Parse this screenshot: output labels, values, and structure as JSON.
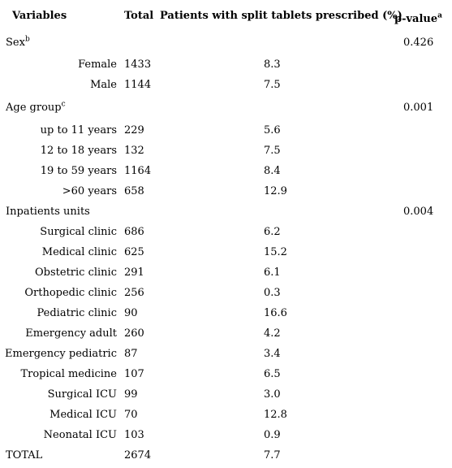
{
  "table": {
    "headers": {
      "variables": "Variables",
      "total": "Total",
      "pct": "Patients with split tablets prescribed (%)",
      "pvalue": "p-value",
      "pvalue_sup": "a"
    },
    "sections": [
      {
        "title": "Sex",
        "title_sup": "b",
        "pvalue": "0.426",
        "rows": [
          {
            "label": "Female",
            "total": "1433",
            "pct": "8.3"
          },
          {
            "label": "Male",
            "total": "1144",
            "pct": "7.5"
          }
        ]
      },
      {
        "title": "Age group",
        "title_sup": "c",
        "pvalue": "0.001",
        "rows": [
          {
            "label": "up to 11 years",
            "total": "229",
            "pct": "5.6"
          },
          {
            "label": "12 to 18 years",
            "total": "132",
            "pct": "7.5"
          },
          {
            "label": "19 to 59 years",
            "total": "1164",
            "pct": "8.4"
          },
          {
            "label": ">60 years",
            "total": "658",
            "pct": "12.9"
          }
        ]
      },
      {
        "title": "Inpatients units",
        "title_sup": "",
        "pvalue": "0.004",
        "rows": [
          {
            "label": "Surgical clinic",
            "total": "686",
            "pct": "6.2"
          },
          {
            "label": "Medical clinic",
            "total": "625",
            "pct": "15.2"
          },
          {
            "label": "Obstetric clinic",
            "total": "291",
            "pct": "6.1"
          },
          {
            "label": "Orthopedic clinic",
            "total": "256",
            "pct": "0.3"
          },
          {
            "label": "Pediatric clinic",
            "total": "90",
            "pct": "16.6"
          },
          {
            "label": "Emergency adult",
            "total": "260",
            "pct": "4.2"
          },
          {
            "label": "Emergency pediatric",
            "total": "87",
            "pct": "3.4"
          },
          {
            "label": "Tropical medicine",
            "total": "107",
            "pct": "6.5"
          },
          {
            "label": "Surgical ICU",
            "total": "99",
            "pct": "3.0"
          },
          {
            "label": "Medical ICU",
            "total": "70",
            "pct": "12.8"
          },
          {
            "label": "Neonatal ICU",
            "total": "103",
            "pct": "0.9"
          }
        ]
      }
    ],
    "total_row": {
      "label": "TOTAL",
      "total": "2674",
      "pct": "7.7"
    }
  }
}
